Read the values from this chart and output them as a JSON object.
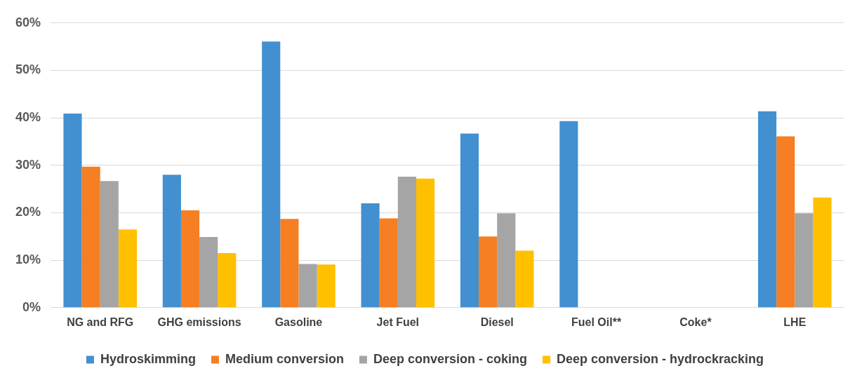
{
  "chart_data": {
    "type": "bar",
    "categories": [
      "NG and RFG",
      "GHG emissions",
      "Gasoline",
      "Jet Fuel",
      "Diesel",
      "Fuel Oil**",
      "Coke*",
      "LHE"
    ],
    "series": [
      {
        "name": "Hydroskimming",
        "color": "#4290cf",
        "values": [
          40.9,
          28.0,
          56.1,
          22.0,
          36.7,
          39.3,
          null,
          41.4
        ]
      },
      {
        "name": "Medium conversion",
        "color": "#f57f22",
        "values": [
          29.7,
          20.5,
          18.7,
          18.8,
          15.0,
          null,
          null,
          36.1
        ]
      },
      {
        "name": "Deep conversion - coking",
        "color": "#a5a5a5",
        "values": [
          26.7,
          14.9,
          9.2,
          27.6,
          19.9,
          null,
          null,
          19.9
        ]
      },
      {
        "name": "Deep conversion - hydrockracking",
        "color": "#ffc000",
        "values": [
          16.5,
          11.5,
          9.1,
          27.2,
          12.0,
          null,
          null,
          23.2
        ]
      }
    ],
    "ylim": [
      0,
      60
    ],
    "yticks": [
      {
        "value": 0,
        "label": "0%"
      },
      {
        "value": 10,
        "label": "10%"
      },
      {
        "value": 20,
        "label": "20%"
      },
      {
        "value": 30,
        "label": "30%"
      },
      {
        "value": 40,
        "label": "40%"
      },
      {
        "value": 50,
        "label": "50%"
      },
      {
        "value": 60,
        "label": "60%"
      }
    ],
    "grid": "y",
    "legend": "bottom"
  }
}
